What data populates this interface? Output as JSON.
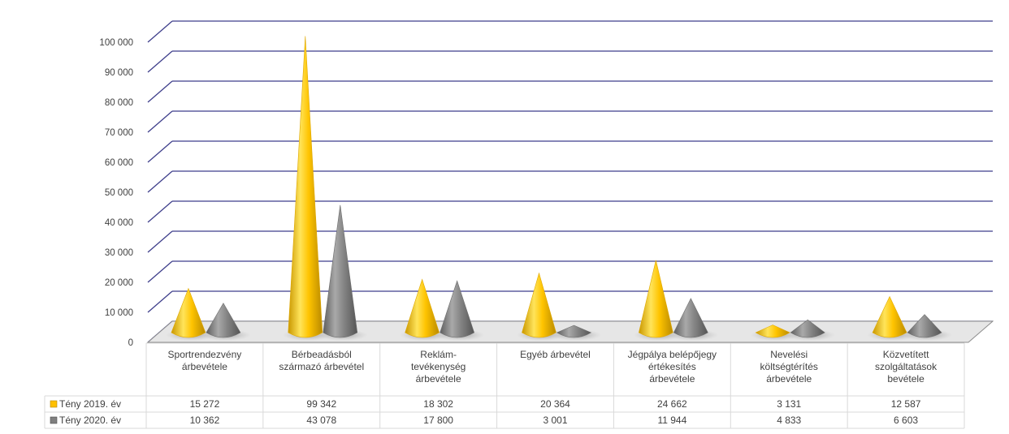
{
  "chart_data": {
    "type": "bar",
    "shape": "cone",
    "title": "",
    "xlabel": "",
    "ylabel": "",
    "ylim": [
      0,
      100000
    ],
    "yticks": [
      0,
      10000,
      20000,
      30000,
      40000,
      50000,
      60000,
      70000,
      80000,
      90000,
      100000
    ],
    "ytick_labels": [
      "0",
      "10 000",
      "20 000",
      "30 000",
      "40 000",
      "50 000",
      "60 000",
      "70 000",
      "80 000",
      "90 000",
      "100 000"
    ],
    "grid": true,
    "legend": "data-table",
    "categories": [
      [
        "Sportrendezvény",
        "árbevétele"
      ],
      [
        "Bérbeadásból",
        "származó árbevétel"
      ],
      [
        "Reklám-",
        "tevékenység",
        "árbevétele"
      ],
      [
        "Egyéb árbevétel"
      ],
      [
        "Jégpálya belépőjegy",
        "értékesítés",
        "árbevétele"
      ],
      [
        "Nevelési",
        "költségtérítés",
        "árbevétele"
      ],
      [
        "Közvetített",
        "szolgáltatások",
        "bevétele"
      ]
    ],
    "series": [
      {
        "name": "Tény 2019. év",
        "color": "#FFC000",
        "values": [
          15272,
          99342,
          18302,
          20364,
          24662,
          3131,
          12587
        ],
        "labels": [
          "15 272",
          "99 342",
          "18 302",
          "20 364",
          "24 662",
          "3 131",
          "12 587"
        ]
      },
      {
        "name": "Tény 2020. év",
        "color": "#7F7F7F",
        "values": [
          10362,
          43078,
          17800,
          3001,
          11944,
          4833,
          6603
        ],
        "labels": [
          "10 362",
          "43 078",
          "17 800",
          "3 001",
          "11 944",
          "4 833",
          "6 603"
        ]
      }
    ]
  }
}
